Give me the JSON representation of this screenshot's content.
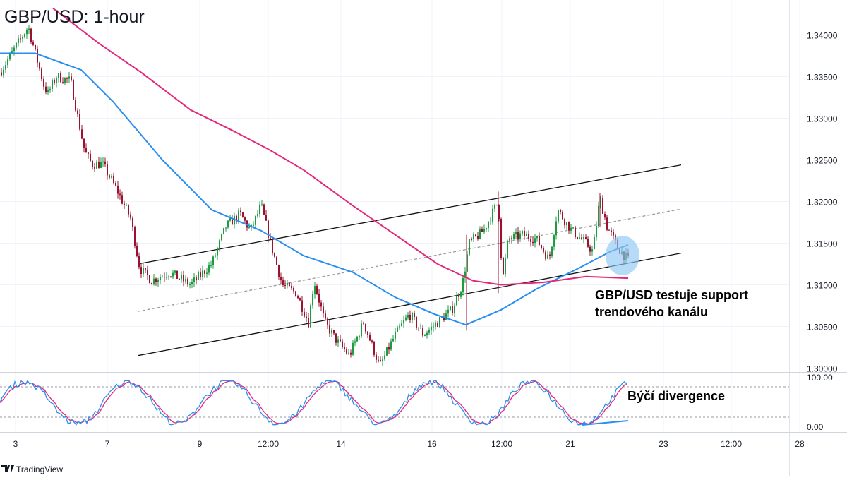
{
  "chart_data": [
    {
      "type": "candlestick",
      "title": "GBP/USD: 1-hour",
      "y_ticks": [
        "1.34000",
        "1.33500",
        "1.33000",
        "1.32500",
        "1.32000",
        "1.31500",
        "1.31000",
        "1.30500",
        "1.30000"
      ],
      "ylim": [
        1.2995,
        1.3432
      ],
      "x_ticks": [
        "3",
        "7",
        "9",
        "12:00",
        "14",
        "16",
        "12:00",
        "21",
        "23",
        "12:00",
        "28"
      ],
      "grid": true,
      "close_path": [
        {
          "x": 0,
          "y": 1.3355
        },
        {
          "x": 40,
          "y": 1.341
        },
        {
          "x": 62,
          "y": 1.334
        },
        {
          "x": 68,
          "y": 1.333
        },
        {
          "x": 80,
          "y": 1.335
        },
        {
          "x": 100,
          "y": 1.3345
        },
        {
          "x": 120,
          "y": 1.326
        },
        {
          "x": 130,
          "y": 1.3245
        },
        {
          "x": 145,
          "y": 1.3245
        },
        {
          "x": 165,
          "y": 1.3215
        },
        {
          "x": 185,
          "y": 1.318
        },
        {
          "x": 198,
          "y": 1.312
        },
        {
          "x": 215,
          "y": 1.3105
        },
        {
          "x": 240,
          "y": 1.3115
        },
        {
          "x": 270,
          "y": 1.31
        },
        {
          "x": 300,
          "y": 1.3125
        },
        {
          "x": 320,
          "y": 1.317
        },
        {
          "x": 340,
          "y": 1.3185
        },
        {
          "x": 355,
          "y": 1.3165
        },
        {
          "x": 370,
          "y": 1.3195
        },
        {
          "x": 385,
          "y": 1.3145
        },
        {
          "x": 400,
          "y": 1.31
        },
        {
          "x": 420,
          "y": 1.309
        },
        {
          "x": 437,
          "y": 1.3055
        },
        {
          "x": 445,
          "y": 1.3105
        },
        {
          "x": 460,
          "y": 1.3055
        },
        {
          "x": 475,
          "y": 1.3035
        },
        {
          "x": 495,
          "y": 1.3015
        },
        {
          "x": 515,
          "y": 1.3055
        },
        {
          "x": 538,
          "y": 1.3002
        },
        {
          "x": 560,
          "y": 1.304
        },
        {
          "x": 580,
          "y": 1.3065
        },
        {
          "x": 600,
          "y": 1.304
        },
        {
          "x": 620,
          "y": 1.3055
        },
        {
          "x": 640,
          "y": 1.307
        },
        {
          "x": 655,
          "y": 1.31
        },
        {
          "x": 665,
          "y": 1.315
        },
        {
          "x": 685,
          "y": 1.3165
        },
        {
          "x": 706,
          "y": 1.32
        },
        {
          "x": 712,
          "y": 1.3105
        },
        {
          "x": 720,
          "y": 1.3155
        },
        {
          "x": 740,
          "y": 1.316
        },
        {
          "x": 760,
          "y": 1.3155
        },
        {
          "x": 778,
          "y": 1.313
        },
        {
          "x": 790,
          "y": 1.319
        },
        {
          "x": 810,
          "y": 1.3165
        },
        {
          "x": 830,
          "y": 1.315
        },
        {
          "x": 840,
          "y": 1.314
        },
        {
          "x": 850,
          "y": 1.3205
        },
        {
          "x": 860,
          "y": 1.317
        },
        {
          "x": 875,
          "y": 1.3145
        },
        {
          "x": 890,
          "y": 1.313
        }
      ],
      "ma_fast": [
        {
          "x": 0,
          "y": 1.3378
        },
        {
          "x": 50,
          "y": 1.3378
        },
        {
          "x": 115,
          "y": 1.3358
        },
        {
          "x": 160,
          "y": 1.332
        },
        {
          "x": 230,
          "y": 1.325
        },
        {
          "x": 300,
          "y": 1.319
        },
        {
          "x": 370,
          "y": 1.3165
        },
        {
          "x": 430,
          "y": 1.3135
        },
        {
          "x": 500,
          "y": 1.3115
        },
        {
          "x": 560,
          "y": 1.3085
        },
        {
          "x": 615,
          "y": 1.3065
        },
        {
          "x": 660,
          "y": 1.3052
        },
        {
          "x": 710,
          "y": 1.307
        },
        {
          "x": 760,
          "y": 1.3095
        },
        {
          "x": 820,
          "y": 1.312
        },
        {
          "x": 865,
          "y": 1.314
        },
        {
          "x": 890,
          "y": 1.3148
        }
      ],
      "ma_slow": [
        {
          "x": 75,
          "y": 1.3432
        },
        {
          "x": 140,
          "y": 1.339
        },
        {
          "x": 200,
          "y": 1.3355
        },
        {
          "x": 270,
          "y": 1.331
        },
        {
          "x": 330,
          "y": 1.3285
        },
        {
          "x": 380,
          "y": 1.3263
        },
        {
          "x": 430,
          "y": 1.3238
        },
        {
          "x": 500,
          "y": 1.3195
        },
        {
          "x": 560,
          "y": 1.316
        },
        {
          "x": 620,
          "y": 1.3125
        },
        {
          "x": 670,
          "y": 1.3105
        },
        {
          "x": 710,
          "y": 1.31
        },
        {
          "x": 770,
          "y": 1.3103
        },
        {
          "x": 830,
          "y": 1.311
        },
        {
          "x": 890,
          "y": 1.3108
        }
      ],
      "channel_upper": [
        {
          "x": 195,
          "y": 1.3125
        },
        {
          "x": 965,
          "y": 1.3244
        }
      ],
      "channel_mid": [
        {
          "x": 195,
          "y": 1.3068
        },
        {
          "x": 965,
          "y": 1.3191
        }
      ],
      "channel_lower": [
        {
          "x": 195,
          "y": 1.3015
        },
        {
          "x": 965,
          "y": 1.3138
        }
      ],
      "annotation": "GBP/USD testuje support\ntrendového kanálu",
      "colors": {
        "up": "#1a9c3f",
        "down": "#9b1130",
        "ma_fast": "#2a8ef0",
        "ma_slow": "#e3287a",
        "channel": "#111111",
        "channel_mid": "#999999",
        "highlight": "#8ec7f5"
      }
    },
    {
      "type": "line",
      "indicator": "stochastic",
      "y_ticks": [
        "100.00",
        "0.00"
      ],
      "ylim": [
        0,
        100
      ],
      "levels": [
        80,
        20
      ],
      "annotation": "Býčí divergence",
      "colors": {
        "k_line": "#2a8ef0",
        "d_line": "#e3287a",
        "divergence": "#2a8ef0"
      }
    }
  ],
  "footer": {
    "brand": "TradingView"
  }
}
